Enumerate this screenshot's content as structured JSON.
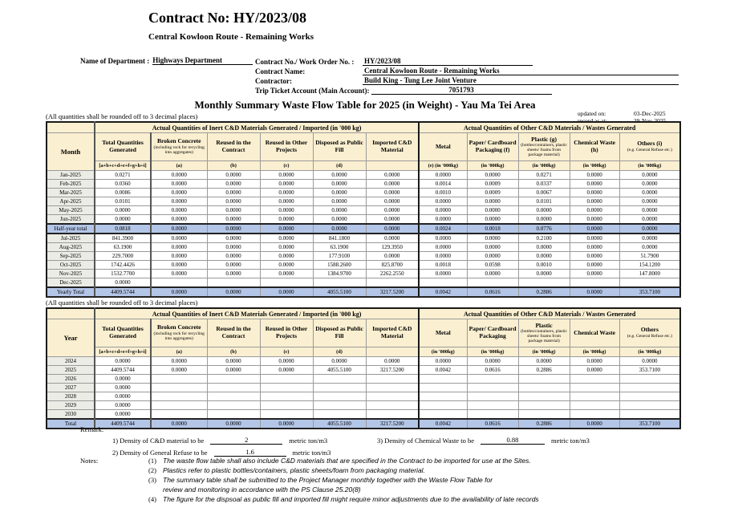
{
  "header": {
    "contract_no_title": "Contract No: HY/2023/08",
    "contract_subtitle": "Central Kowloon Route - Remaining Works",
    "department_label": "Name of Department :",
    "department_value": "Highways Department",
    "fields": [
      {
        "label": "Contract No./ Work Order No. :",
        "value": "HY/2023/08"
      },
      {
        "label": "Contract Name:",
        "value": "Central Kowloon Route - Remaining Works"
      },
      {
        "label": "Contractor:",
        "value": "Build King - Tung Lee Joint Venture"
      },
      {
        "label": "Trip Ticket Account (Main Account):",
        "value": "7051793"
      }
    ]
  },
  "title": "Monthly Summary Waste Flow Table for 2025 (in Weight) - Yau Ma Tei Area",
  "meta": {
    "updated_label": "updated on:",
    "updated_value": "03-Dec-2025",
    "record_label": "record as at:",
    "record_value": "29-Nov-2025"
  },
  "colors": {
    "header_fill": "#FAEFD0",
    "row_label_fill": "#ECECE6",
    "total_quantities_fill": "#E9E9E9",
    "total_row_fill": "#B4C6E7"
  },
  "tables": [
    {
      "rounding_note": "(All quantities shall be rounded off to 3 decimal places)",
      "row_header": "Month",
      "group_inert": "Actual Quantities of Inert C&D Materials Generated / Imported (in '000 kg)",
      "group_other": "Actual Quantities of Other C&D Materials / Wastes Generated",
      "columns": [
        {
          "title": "Total Quantities Generated",
          "note": "",
          "sub": "[a+b+c+d+e+f+g+h+i]"
        },
        {
          "title": "Broken Concrete",
          "note": "(including rock for recycling into aggregates)",
          "sub": "(a)"
        },
        {
          "title": "Reused in the Contract",
          "note": "",
          "sub": "(b)"
        },
        {
          "title": "Reused in Other Projects",
          "note": "",
          "sub": "(c)"
        },
        {
          "title": "Disposed as Public Fill",
          "note": "",
          "sub": "(d)"
        },
        {
          "title": "Imported C&D Material",
          "note": "",
          "sub": ""
        },
        {
          "title": "Metal",
          "note": "",
          "sub": "(e)  (in '000kg)"
        },
        {
          "title": "Paper/ Cardboard Packaging  (f)",
          "note": "",
          "sub": "(in '000kg)"
        },
        {
          "title": "Plastic  (g)",
          "note": "(bottles/containers, plastic sheets/ foams from package material)",
          "sub": "(in '000kg)"
        },
        {
          "title": "Chemical Waste (h)",
          "note": "",
          "sub": "(in '000kg)"
        },
        {
          "title": "Others (i)",
          "note": "(e.g. General Refuse etc.)",
          "sub": "(in '000kg)"
        }
      ],
      "rows": [
        {
          "label": "Jan-2025",
          "style": "normal",
          "values": [
            "0.0271",
            "0.0000",
            "0.0000",
            "0.0000",
            "0.0000",
            "0.0000",
            "0.0000",
            "0.0000",
            "0.0271",
            "0.0000",
            "0.0000"
          ]
        },
        {
          "label": "Feb-2025",
          "style": "normal",
          "values": [
            "0.0360",
            "0.0000",
            "0.0000",
            "0.0000",
            "0.0000",
            "0.0000",
            "0.0014",
            "0.0009",
            "0.0337",
            "0.0000",
            "0.0000"
          ]
        },
        {
          "label": "Mar-2025",
          "style": "normal",
          "values": [
            "0.0086",
            "0.0000",
            "0.0000",
            "0.0000",
            "0.0000",
            "0.0000",
            "0.0010",
            "0.0009",
            "0.0067",
            "0.0000",
            "0.0000"
          ]
        },
        {
          "label": "Apr-2025",
          "style": "normal",
          "values": [
            "0.0101",
            "0.0000",
            "0.0000",
            "0.0000",
            "0.0000",
            "0.0000",
            "0.0000",
            "0.0000",
            "0.0101",
            "0.0000",
            "0.0000"
          ]
        },
        {
          "label": "May-2025",
          "style": "normal",
          "values": [
            "0.0000",
            "0.0000",
            "0.0000",
            "0.0000",
            "0.0000",
            "0.0000",
            "0.0000",
            "0.0000",
            "0.0000",
            "0.0000",
            "0.0000"
          ]
        },
        {
          "label": "Jun-2025",
          "style": "normal",
          "values": [
            "0.0000",
            "0.0000",
            "0.0000",
            "0.0000",
            "0.0000",
            "0.0000",
            "0.0000",
            "0.0000",
            "0.0000",
            "0.0000",
            "0.0000"
          ]
        },
        {
          "label": "Half-year total",
          "style": "total",
          "values": [
            "0.0818",
            "0.0000",
            "0.0000",
            "0.0000",
            "0.0000",
            "0.0000",
            "0.0024",
            "0.0018",
            "0.0776",
            "0.0000",
            "0.0000"
          ]
        },
        {
          "label": "Jul-2025",
          "style": "normal",
          "values": [
            "841.3900",
            "0.0000",
            "0.0000",
            "0.0000",
            "841.1800",
            "0.0000",
            "0.0000",
            "0.0000",
            "0.2100",
            "0.0000",
            "0.0000"
          ]
        },
        {
          "label": "Aug-2025",
          "style": "normal",
          "values": [
            "63.1900",
            "0.0000",
            "0.0000",
            "0.0000",
            "63.1900",
            "129.3950",
            "0.0000",
            "0.0000",
            "0.0000",
            "0.0000",
            "0.0000"
          ]
        },
        {
          "label": "Sep-2025",
          "style": "normal",
          "values": [
            "229.7000",
            "0.0000",
            "0.0000",
            "0.0000",
            "177.9100",
            "0.0000",
            "0.0000",
            "0.0000",
            "0.0000",
            "0.0000",
            "51.7900"
          ]
        },
        {
          "label": "Oct-2025",
          "style": "normal",
          "values": [
            "1742.4426",
            "0.0000",
            "0.0000",
            "0.0000",
            "1588.2600",
            "825.8700",
            "0.0018",
            "0.0598",
            "0.0010",
            "0.0000",
            "154.1200"
          ]
        },
        {
          "label": "Nov-2025",
          "style": "normal",
          "values": [
            "1532.7700",
            "0.0000",
            "0.0000",
            "0.0000",
            "1384.9700",
            "2262.2550",
            "0.0000",
            "0.0000",
            "0.0000",
            "0.0000",
            "147.8000"
          ]
        },
        {
          "label": "Dec-2025",
          "style": "normal",
          "values": [
            "0.0000",
            "",
            "",
            "",
            "",
            "",
            "",
            "",
            "",
            "",
            ""
          ]
        },
        {
          "label": "Yearly Total",
          "style": "total",
          "values": [
            "4409.5744",
            "0.0000",
            "0.0000",
            "0.0000",
            "4055.5100",
            "3217.5200",
            "0.0042",
            "0.0616",
            "0.2886",
            "0.0000",
            "353.7100"
          ]
        }
      ]
    },
    {
      "rounding_note": "(All quantities shall be rounded off to 3 decimal places)",
      "row_header": "Year",
      "group_inert": "Actual Quantities of Inert C&D Materials Generated / Imported (in '000 kg)",
      "group_other": "Actual Quantities of Other C&D Materials / Wastes Generated",
      "columns": [
        {
          "title": "Total Quantities Generated",
          "note": "",
          "sub": "[a+b+c+d+e+f+g+h+i]"
        },
        {
          "title": "Broken Concrete",
          "note": "(including rock for recycling into aggregates)",
          "sub": "(a)"
        },
        {
          "title": "Reused in the Contract",
          "note": "",
          "sub": "(b)"
        },
        {
          "title": "Reused in Other Projects",
          "note": "",
          "sub": "(c)"
        },
        {
          "title": "Disposed as Public Fill",
          "note": "",
          "sub": "(d)"
        },
        {
          "title": "Imported C&D Material",
          "note": "",
          "sub": ""
        },
        {
          "title": "Metal",
          "note": "",
          "sub": "(in '000kg)"
        },
        {
          "title": "Paper/ Cardboard Packaging",
          "note": "",
          "sub": "(in '000kg)"
        },
        {
          "title": "Plastic",
          "note": "(bottles/containers, plastic sheets/ foams from package material)",
          "sub": "(in '000kg)"
        },
        {
          "title": "Chemical Waste",
          "note": "",
          "sub": "(in '000kg)"
        },
        {
          "title": "Others",
          "note": "(e.g. General Refuse etc.)",
          "sub": "(in '000kg)"
        }
      ],
      "rows": [
        {
          "label": "2024",
          "style": "normal",
          "values": [
            "0.0000",
            "0.0000",
            "0.0000",
            "0.0000",
            "0.0000",
            "0.0000",
            "0.0000",
            "0.0000",
            "0.0000",
            "0.0000",
            "0.0000"
          ]
        },
        {
          "label": "2025",
          "style": "normal",
          "values": [
            "4409.5744",
            "0.0000",
            "0.0000",
            "0.0000",
            "4055.5100",
            "3217.5200",
            "0.0042",
            "0.0616",
            "0.2886",
            "0.0000",
            "353.7100"
          ]
        },
        {
          "label": "2026",
          "style": "normal",
          "values": [
            "0.0000",
            "",
            "",
            "",
            "",
            "",
            "",
            "",
            "",
            "",
            ""
          ]
        },
        {
          "label": "2027",
          "style": "normal",
          "values": [
            "0.0000",
            "",
            "",
            "",
            "",
            "",
            "",
            "",
            "",
            "",
            ""
          ]
        },
        {
          "label": "2028",
          "style": "normal",
          "values": [
            "0.0000",
            "",
            "",
            "",
            "",
            "",
            "",
            "",
            "",
            "",
            ""
          ]
        },
        {
          "label": "2029",
          "style": "normal",
          "values": [
            "0.0000",
            "",
            "",
            "",
            "",
            "",
            "",
            "",
            "",
            "",
            ""
          ]
        },
        {
          "label": "2030",
          "style": "normal",
          "values": [
            "0.0000",
            "",
            "",
            "",
            "",
            "",
            "",
            "",
            "",
            "",
            ""
          ]
        },
        {
          "label": "Total",
          "style": "total",
          "values": [
            "4409.5744",
            "0.0000",
            "0.0000",
            "0.0000",
            "4055.5100",
            "3217.5200",
            "0.0042",
            "0.0616",
            "0.2886",
            "0.0000",
            "353.7100"
          ]
        }
      ]
    }
  ],
  "remark": {
    "label": "Remark:",
    "items": [
      {
        "label": "1) Density of C&D material to be",
        "value": "2",
        "unit": "metric ton/m3"
      },
      {
        "label": "2) Density of General Refuse to be",
        "value": "1.6",
        "unit": "metric ton/m3"
      },
      {
        "label": "3) Density of Chemical Waste to be",
        "value": "0.88",
        "unit": "metric ton/m3"
      }
    ]
  },
  "notes": {
    "label": "Notes:",
    "items": [
      {
        "num": "(1)",
        "text": "The waste flow table shall also include C&D materials that are specified in the Contract to be imported for use at the Sites."
      },
      {
        "num": "(2)",
        "text": "Plastics refer to plastic bottles/containers, plastic sheets/foam from packaging material."
      },
      {
        "num": "(3)",
        "text": "The summary table shall be submitted to the Project Manager monthly together with the Waste Flow Table for\nreview and monitoring in accordance with the PS Clause 25.20(8)"
      },
      {
        "num": "(4)",
        "text": "The figure for the dispsoal as public fill and imported fill might require minor adjustments due to the availability of late records"
      }
    ]
  }
}
